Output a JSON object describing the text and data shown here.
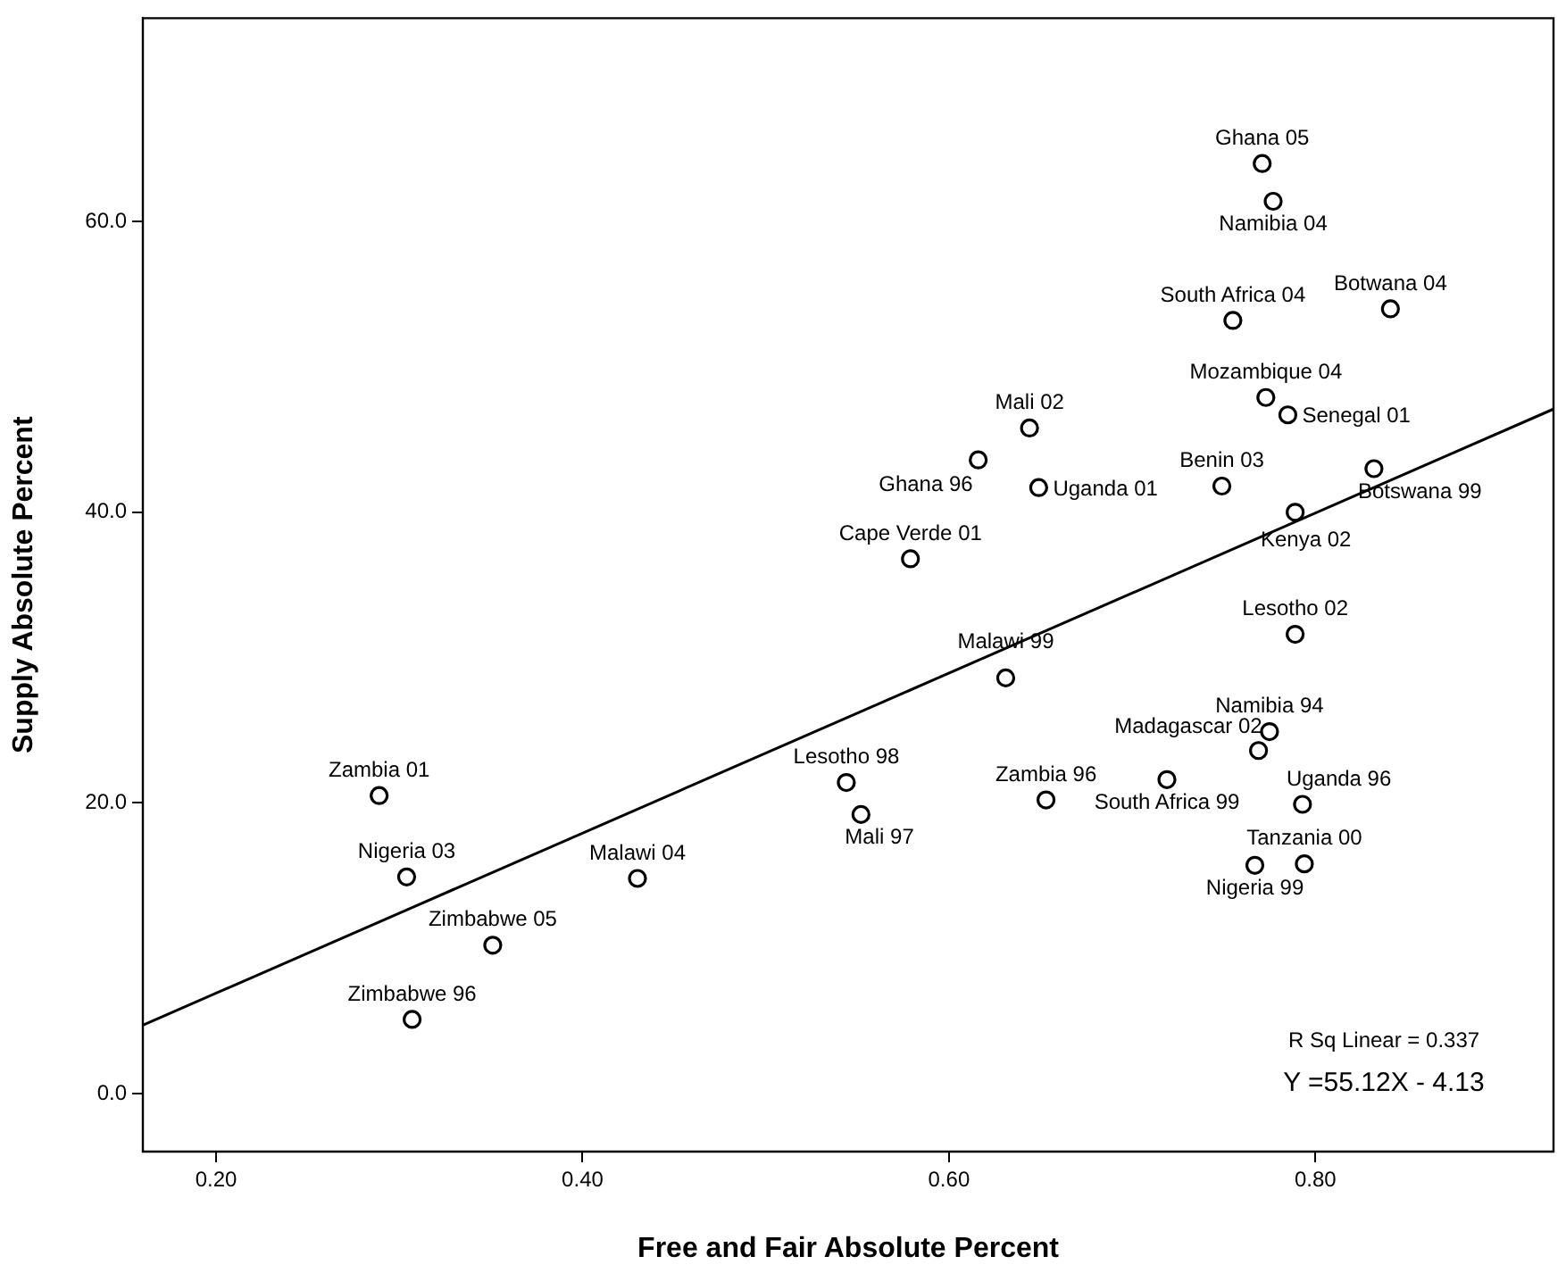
{
  "chart_data": {
    "type": "scatter",
    "xlabel": "Free and Fair Absolute Percent",
    "ylabel": "Supply Absolute Percent",
    "xlim": [
      0.16,
      0.93
    ],
    "ylim": [
      -4,
      74
    ],
    "xticks": [
      {
        "value": 0.2,
        "label": "0.20"
      },
      {
        "value": 0.4,
        "label": "0.40"
      },
      {
        "value": 0.6,
        "label": "0.60"
      },
      {
        "value": 0.8,
        "label": "0.80"
      }
    ],
    "yticks": [
      {
        "value": 0,
        "label": "0.0"
      },
      {
        "value": 20,
        "label": "20.0"
      },
      {
        "value": 40,
        "label": "40.0"
      },
      {
        "value": 60,
        "label": "60.0"
      }
    ],
    "grid": false,
    "legend": false,
    "marker": "circle",
    "series": [
      {
        "color": "#000000",
        "x": [
          0.771,
          0.777,
          0.755,
          0.841,
          0.773,
          0.785,
          0.644,
          0.616,
          0.649,
          0.749,
          0.832,
          0.789,
          0.579,
          0.789,
          0.631,
          0.775,
          0.769,
          0.793,
          0.794,
          0.767,
          0.653,
          0.719,
          0.544,
          0.552,
          0.289,
          0.304,
          0.43,
          0.351,
          0.307
        ],
        "values": [
          64.0,
          61.4,
          53.2,
          54.0,
          47.9,
          46.7,
          45.8,
          43.6,
          41.7,
          41.8,
          43.0,
          40.0,
          36.8,
          31.6,
          28.6,
          24.9,
          23.6,
          19.9,
          15.8,
          15.7,
          20.2,
          21.6,
          21.4,
          19.2,
          20.5,
          14.9,
          14.8,
          10.2,
          5.1
        ]
      },
      {
        "type": "line",
        "color": "#000000",
        "marker": "none",
        "line_style": "solid",
        "x": [
          0.16,
          0.93
        ],
        "values": [
          4.7,
          47.1
        ]
      }
    ],
    "annotations": [
      {
        "text": "Ghana 05",
        "x": 0.771,
        "y": 64.0
      },
      {
        "text": "Namibia 04",
        "x": 0.777,
        "y": 61.4
      },
      {
        "text": "South Africa 04",
        "x": 0.755,
        "y": 53.2
      },
      {
        "text": "Botwana 04",
        "x": 0.841,
        "y": 54.0
      },
      {
        "text": "Mozambique 04",
        "x": 0.773,
        "y": 47.9
      },
      {
        "text": "Senegal 01",
        "x": 0.785,
        "y": 46.7
      },
      {
        "text": "Mali 02",
        "x": 0.644,
        "y": 45.8
      },
      {
        "text": "Ghana 96",
        "x": 0.616,
        "y": 43.6
      },
      {
        "text": "Uganda 01",
        "x": 0.649,
        "y": 41.7
      },
      {
        "text": "Benin 03",
        "x": 0.749,
        "y": 41.8
      },
      {
        "text": "Botswana 99",
        "x": 0.832,
        "y": 43.0
      },
      {
        "text": "Kenya 02",
        "x": 0.789,
        "y": 40.0
      },
      {
        "text": "Cape Verde 01",
        "x": 0.579,
        "y": 36.8
      },
      {
        "text": "Lesotho 02",
        "x": 0.789,
        "y": 31.6
      },
      {
        "text": "Malawi 99",
        "x": 0.631,
        "y": 28.6
      },
      {
        "text": "Namibia 94",
        "x": 0.775,
        "y": 24.9
      },
      {
        "text": "Madagascar 02",
        "x": 0.769,
        "y": 23.6
      },
      {
        "text": "Uganda 96",
        "x": 0.793,
        "y": 19.9
      },
      {
        "text": "Tanzania 00",
        "x": 0.794,
        "y": 15.8
      },
      {
        "text": "Nigeria 99",
        "x": 0.767,
        "y": 15.7
      },
      {
        "text": "Zambia 96",
        "x": 0.653,
        "y": 20.2
      },
      {
        "text": "South Africa 99",
        "x": 0.719,
        "y": 21.6
      },
      {
        "text": "Lesotho 98",
        "x": 0.544,
        "y": 21.4
      },
      {
        "text": "Mali 97",
        "x": 0.552,
        "y": 19.2
      },
      {
        "text": "Zambia 01",
        "x": 0.289,
        "y": 20.5
      },
      {
        "text": "Nigeria 03",
        "x": 0.304,
        "y": 14.9
      },
      {
        "text": "Malawi 04",
        "x": 0.43,
        "y": 14.8
      },
      {
        "text": "Zimbabwe 05",
        "x": 0.351,
        "y": 10.2
      },
      {
        "text": "Zimbabwe 96",
        "x": 0.307,
        "y": 5.1
      },
      "R Sq Linear = 0.337",
      "Y =55.12X - 4.13"
    ]
  }
}
